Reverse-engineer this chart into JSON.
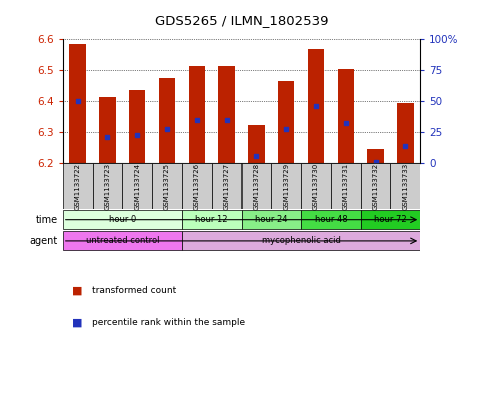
{
  "title": "GDS5265 / ILMN_1802539",
  "samples": [
    "GSM1133722",
    "GSM1133723",
    "GSM1133724",
    "GSM1133725",
    "GSM1133726",
    "GSM1133727",
    "GSM1133728",
    "GSM1133729",
    "GSM1133730",
    "GSM1133731",
    "GSM1133732",
    "GSM1133733"
  ],
  "bar_tops": [
    6.585,
    6.415,
    6.435,
    6.475,
    6.515,
    6.515,
    6.325,
    6.465,
    6.57,
    6.505,
    6.245,
    6.395
  ],
  "bar_bottoms": [
    6.2,
    6.2,
    6.2,
    6.2,
    6.2,
    6.2,
    6.2,
    6.2,
    6.2,
    6.2,
    6.2,
    6.2
  ],
  "blue_markers": [
    6.4,
    6.285,
    6.29,
    6.31,
    6.34,
    6.34,
    6.225,
    6.31,
    6.385,
    6.33,
    6.205,
    6.255
  ],
  "ylim": [
    6.2,
    6.6
  ],
  "yticks": [
    6.2,
    6.3,
    6.4,
    6.5,
    6.6
  ],
  "y2ticks": [
    0,
    25,
    50,
    75,
    100
  ],
  "y2labels": [
    "0",
    "25",
    "50",
    "75",
    "100%"
  ],
  "bar_color": "#bb2200",
  "blue_color": "#2233bb",
  "time_groups": [
    {
      "label": "hour 0",
      "start": 0,
      "end": 4,
      "color": "#ddffdd"
    },
    {
      "label": "hour 12",
      "start": 4,
      "end": 6,
      "color": "#bbffbb"
    },
    {
      "label": "hour 24",
      "start": 6,
      "end": 8,
      "color": "#88ee88"
    },
    {
      "label": "hour 48",
      "start": 8,
      "end": 10,
      "color": "#44dd44"
    },
    {
      "label": "hour 72",
      "start": 10,
      "end": 12,
      "color": "#22cc22"
    }
  ],
  "agent_groups": [
    {
      "label": "untreated control",
      "start": 0,
      "end": 4,
      "color": "#ee77ee"
    },
    {
      "label": "mycophenolic acid",
      "start": 4,
      "end": 12,
      "color": "#ddaadd"
    }
  ],
  "tick_label_color": "#cc2200",
  "right_axis_color": "#2233bb",
  "sample_box_color": "#cccccc",
  "figsize": [
    4.83,
    3.93
  ],
  "dpi": 100
}
